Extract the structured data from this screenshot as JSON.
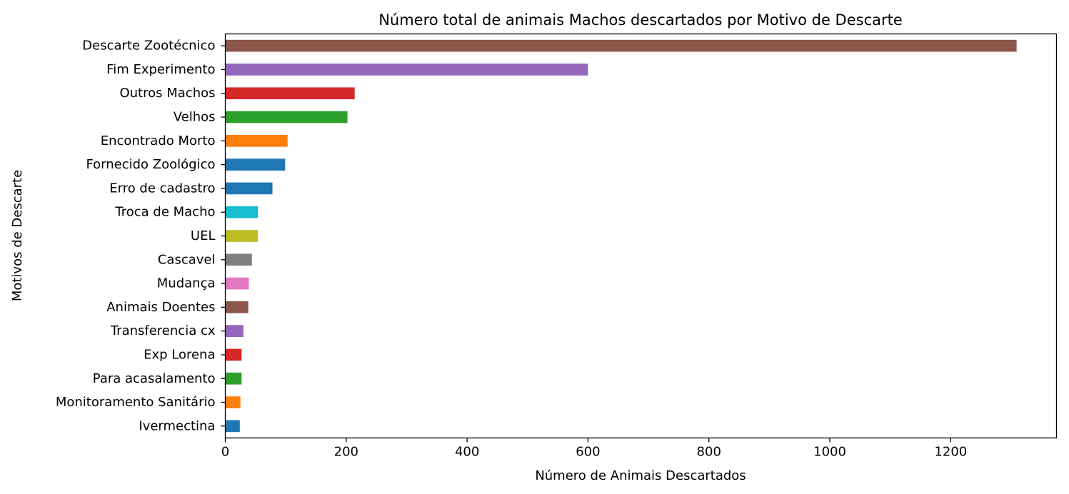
{
  "chart_data": {
    "type": "bar",
    "orientation": "horizontal",
    "title": "Número total de animais Machos descartados por Motivo de Descarte",
    "xlabel": "Número de Animais Descartados",
    "ylabel": "Motivos de Descarte",
    "xlim": [
      0,
      1375
    ],
    "x_ticks": [
      0,
      200,
      400,
      600,
      800,
      1000,
      1200
    ],
    "x_tick_labels": [
      "0",
      "200",
      "400",
      "600",
      "800",
      "1000",
      "1200"
    ],
    "grid": false,
    "legend": "none",
    "categories": [
      "Descarte Zootécnico",
      "Fim Experimento",
      "Outros Machos",
      "Velhos",
      "Encontrado Morto",
      "Fornecido Zoológico",
      "Erro de cadastro",
      "Troca de Macho",
      "UEL",
      "Cascavel",
      "Mudança",
      "Animais Doentes",
      "Transferencia cx",
      "Exp Lorena",
      "Para acasalamento",
      "Monitoramento Sanitário",
      "Ivermectina"
    ],
    "values": [
      1309,
      600,
      214,
      202,
      103,
      99,
      78,
      54,
      54,
      44,
      39,
      38,
      30,
      27,
      27,
      25,
      24
    ],
    "colors": [
      "#8c564b",
      "#9467bd",
      "#d62728",
      "#2ca02c",
      "#ff7f0e",
      "#1f77b4",
      "#1f77b4",
      "#17becf",
      "#bcbd22",
      "#7f7f7f",
      "#e377c2",
      "#8c564b",
      "#9467bd",
      "#d62728",
      "#2ca02c",
      "#ff7f0e",
      "#1f77b4"
    ]
  }
}
